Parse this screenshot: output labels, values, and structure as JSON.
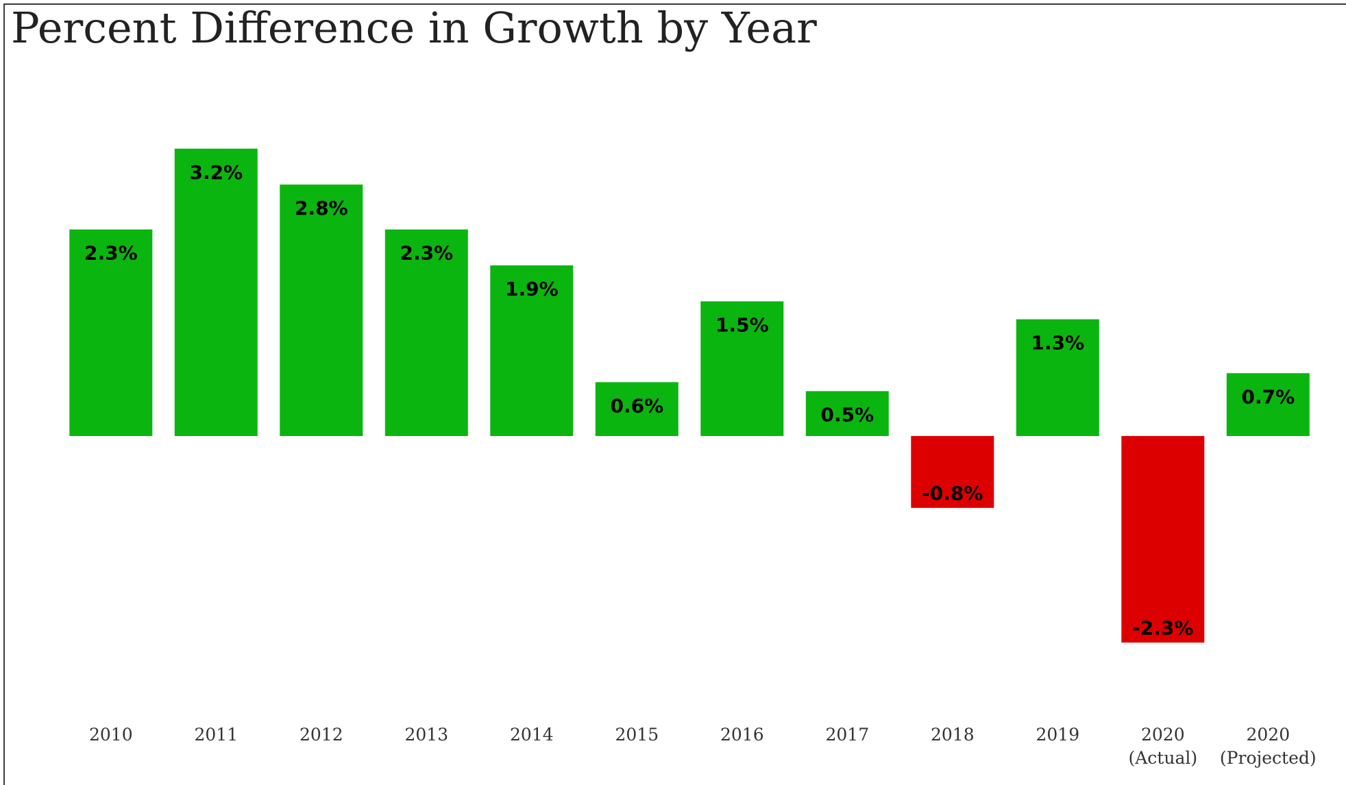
{
  "chart_data": {
    "type": "bar",
    "title": "Percent Difference in Growth by Year",
    "xlabel": "",
    "ylabel": "",
    "unit": "%",
    "categories": [
      "2010",
      "2011",
      "2012",
      "2013",
      "2014",
      "2015",
      "2016",
      "2017",
      "2018",
      "2019",
      "2020 (Actual)",
      "2020 (Projected)"
    ],
    "category_lines": [
      [
        "2010"
      ],
      [
        "2011"
      ],
      [
        "2012"
      ],
      [
        "2013"
      ],
      [
        "2014"
      ],
      [
        "2015"
      ],
      [
        "2016"
      ],
      [
        "2017"
      ],
      [
        "2018"
      ],
      [
        "2019"
      ],
      [
        "2020",
        "(Actual)"
      ],
      [
        "2020",
        "(Projected)"
      ]
    ],
    "values": [
      2.3,
      3.2,
      2.8,
      2.3,
      1.9,
      0.6,
      1.5,
      0.5,
      -0.8,
      1.3,
      -2.3,
      0.7
    ],
    "data_labels": [
      "2.3%",
      "3.2%",
      "2.8%",
      "2.3%",
      "1.9%",
      "0.6%",
      "1.5%",
      "0.5%",
      "-0.8%",
      "1.3%",
      "-2.3%",
      "0.7%"
    ],
    "ylim": [
      -3.0,
      4.0
    ],
    "grid": false,
    "legend": "none",
    "colors": {
      "positive": "#0bb50f",
      "negative": "#dd0000"
    }
  }
}
